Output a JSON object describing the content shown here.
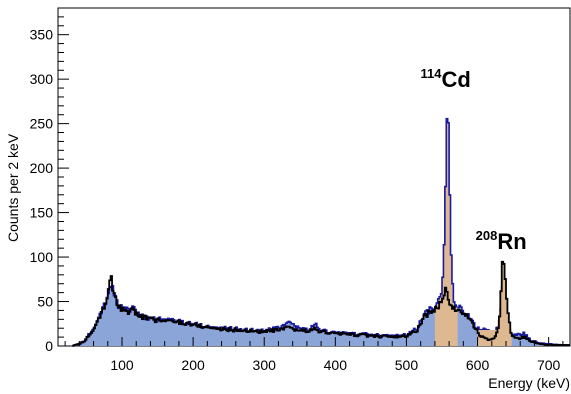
{
  "chart_data": {
    "type": "area",
    "xlabel": "Energy (keV)",
    "ylabel": "Counts per 2 keV",
    "xlim": [
      10,
      730
    ],
    "ylim": [
      0,
      380
    ],
    "x_ticks": [
      100,
      200,
      300,
      400,
      500,
      600,
      700
    ],
    "y_ticks": [
      0,
      50,
      100,
      150,
      200,
      250,
      300,
      350
    ],
    "grid": false,
    "bin_width_keV": 2,
    "series": [
      {
        "role": "filled-histogram-blue",
        "color": "#8ca5d8",
        "edge_color": "#1a1aa0",
        "points": [
          [
            20,
            0
          ],
          [
            30,
            0
          ],
          [
            40,
            2
          ],
          [
            50,
            8
          ],
          [
            60,
            22
          ],
          [
            70,
            38
          ],
          [
            78,
            52
          ],
          [
            84,
            70
          ],
          [
            88,
            62
          ],
          [
            95,
            45
          ],
          [
            105,
            40
          ],
          [
            115,
            42
          ],
          [
            125,
            35
          ],
          [
            140,
            30
          ],
          [
            160,
            30
          ],
          [
            180,
            28
          ],
          [
            200,
            25
          ],
          [
            220,
            22
          ],
          [
            240,
            20
          ],
          [
            260,
            19
          ],
          [
            280,
            18
          ],
          [
            300,
            17
          ],
          [
            320,
            20
          ],
          [
            335,
            25
          ],
          [
            345,
            22
          ],
          [
            360,
            18
          ],
          [
            372,
            24
          ],
          [
            380,
            17
          ],
          [
            400,
            15
          ],
          [
            420,
            14
          ],
          [
            440,
            13
          ],
          [
            460,
            12
          ],
          [
            480,
            11
          ],
          [
            500,
            12
          ],
          [
            515,
            20
          ],
          [
            525,
            35
          ],
          [
            535,
            42
          ],
          [
            545,
            44
          ],
          [
            552,
            45
          ],
          [
            556,
            44
          ],
          [
            560,
            40
          ],
          [
            565,
            38
          ],
          [
            570,
            42
          ],
          [
            575,
            44
          ],
          [
            580,
            40
          ],
          [
            590,
            30
          ],
          [
            598,
            20
          ],
          [
            605,
            18
          ],
          [
            615,
            18
          ],
          [
            625,
            18
          ],
          [
            633,
            22
          ],
          [
            638,
            25
          ],
          [
            645,
            15
          ],
          [
            655,
            12
          ],
          [
            665,
            14
          ],
          [
            675,
            6
          ],
          [
            690,
            3
          ],
          [
            700,
            2
          ],
          [
            715,
            1
          ],
          [
            730,
            1
          ]
        ]
      },
      {
        "role": "filled-histogram-tan",
        "color": "#deb890",
        "points": [
          [
            540,
            44
          ],
          [
            550,
            60
          ],
          [
            554,
            130
          ],
          [
            556,
            230
          ],
          [
            558,
            285
          ],
          [
            560,
            220
          ],
          [
            562,
            120
          ],
          [
            566,
            52
          ],
          [
            570,
            44
          ],
          [
            630,
            30
          ],
          [
            634,
            80
          ],
          [
            636,
            104
          ],
          [
            638,
            85
          ],
          [
            642,
            40
          ],
          [
            648,
            15
          ]
        ]
      },
      {
        "role": "black-outline",
        "color": "#000000",
        "points": [
          [
            20,
            0
          ],
          [
            30,
            0
          ],
          [
            40,
            2
          ],
          [
            50,
            8
          ],
          [
            60,
            20
          ],
          [
            70,
            36
          ],
          [
            78,
            50
          ],
          [
            84,
            80
          ],
          [
            88,
            60
          ],
          [
            95,
            44
          ],
          [
            105,
            38
          ],
          [
            115,
            40
          ],
          [
            125,
            34
          ],
          [
            140,
            30
          ],
          [
            160,
            28
          ],
          [
            180,
            27
          ],
          [
            200,
            24
          ],
          [
            220,
            21
          ],
          [
            240,
            19
          ],
          [
            260,
            18
          ],
          [
            280,
            17
          ],
          [
            300,
            16
          ],
          [
            320,
            18
          ],
          [
            335,
            20
          ],
          [
            345,
            18
          ],
          [
            360,
            17
          ],
          [
            372,
            19
          ],
          [
            380,
            16
          ],
          [
            400,
            14
          ],
          [
            420,
            13
          ],
          [
            440,
            12
          ],
          [
            460,
            11
          ],
          [
            480,
            10
          ],
          [
            500,
            11
          ],
          [
            515,
            18
          ],
          [
            525,
            32
          ],
          [
            535,
            40
          ],
          [
            545,
            44
          ],
          [
            550,
            50
          ],
          [
            554,
            60
          ],
          [
            556,
            65
          ],
          [
            558,
            60
          ],
          [
            560,
            50
          ],
          [
            566,
            42
          ],
          [
            570,
            40
          ],
          [
            580,
            38
          ],
          [
            590,
            28
          ],
          [
            598,
            18
          ],
          [
            605,
            10
          ],
          [
            615,
            8
          ],
          [
            625,
            10
          ],
          [
            630,
            20
          ],
          [
            634,
            80
          ],
          [
            636,
            104
          ],
          [
            638,
            88
          ],
          [
            642,
            40
          ],
          [
            648,
            12
          ],
          [
            655,
            8
          ],
          [
            665,
            10
          ],
          [
            675,
            5
          ],
          [
            690,
            2
          ],
          [
            700,
            1
          ],
          [
            715,
            1
          ],
          [
            730,
            1
          ]
        ]
      }
    ],
    "annotations": [
      {
        "label": "Cd",
        "superscript": "114",
        "x": 558,
        "y": 300
      },
      {
        "label": "Rn",
        "superscript": "208",
        "x": 636,
        "y": 118
      }
    ]
  }
}
